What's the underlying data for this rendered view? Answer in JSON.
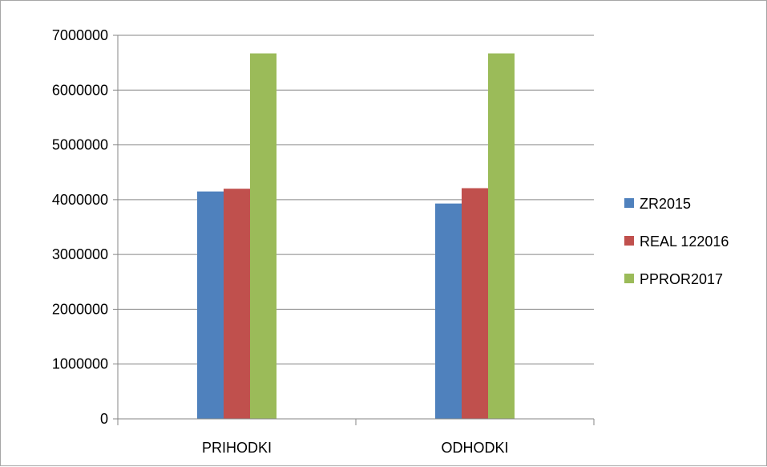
{
  "chart_data": {
    "type": "bar",
    "title": "",
    "xlabel": "",
    "ylabel": "",
    "categories": [
      "PRIHODKI",
      "ODHODKI"
    ],
    "series": [
      {
        "name": "ZR2015",
        "values": [
          4150000,
          3930000
        ],
        "color": "#4f81bd"
      },
      {
        "name": "REAL 122016",
        "values": [
          4200000,
          4210000
        ],
        "color": "#c0504d"
      },
      {
        "name": "PPROR2017",
        "values": [
          6670000,
          6670000
        ],
        "color": "#9bbb59"
      }
    ],
    "ylim": [
      0,
      7000000
    ],
    "yticks": [
      0,
      1000000,
      2000000,
      3000000,
      4000000,
      5000000,
      6000000,
      7000000
    ],
    "ytick_labels": [
      "0",
      "1000000",
      "2000000",
      "3000000",
      "4000000",
      "5000000",
      "6000000",
      "7000000"
    ],
    "grid": true,
    "legend_position": "right",
    "colors": {
      "grid": "#868686",
      "axis": "#868686"
    }
  }
}
